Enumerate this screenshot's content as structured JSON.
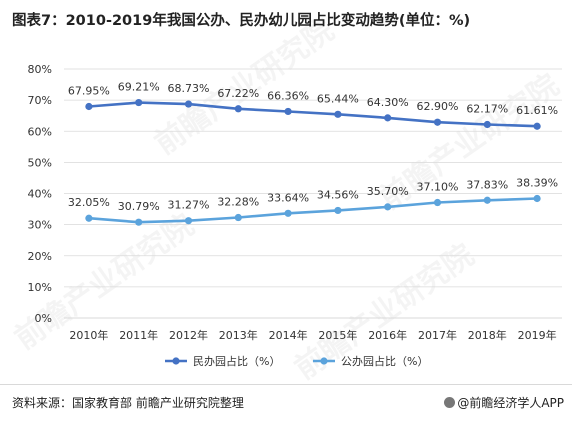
{
  "title": "图表7：2010-2019年我国公办、民办幼儿园占比变动趋势(单位：%)",
  "watermark": "前瞻产业研究院",
  "footer": {
    "source": "资料来源：国家教育部 前瞻产业研究院整理",
    "brand": "@前瞻经济学人APP"
  },
  "colors": {
    "series_private": "#4472c4",
    "series_public": "#5ba3dc",
    "grid": "#d9d9d9"
  },
  "chart_data": {
    "type": "line",
    "title": "图表7：2010-2019年我国公办、民办幼儿园占比变动趋势(单位：%)",
    "xlabel": "",
    "ylabel": "",
    "categories": [
      "2010年",
      "2011年",
      "2012年",
      "2013年",
      "2014年",
      "2015年",
      "2016年",
      "2017年",
      "2018年",
      "2019年"
    ],
    "ylim": [
      0,
      80
    ],
    "yticks": [
      "0%",
      "10%",
      "20%",
      "30%",
      "40%",
      "50%",
      "60%",
      "70%",
      "80%"
    ],
    "grid": true,
    "legend_position": "bottom",
    "series": [
      {
        "name": "民办园占比（%）",
        "values": [
          67.95,
          69.21,
          68.73,
          67.22,
          66.36,
          65.44,
          64.3,
          62.9,
          62.17,
          61.61
        ],
        "labels": [
          "67.95%",
          "69.21%",
          "68.73%",
          "67.22%",
          "66.36%",
          "65.44%",
          "64.30%",
          "62.90%",
          "62.17%",
          "61.61%"
        ]
      },
      {
        "name": "公办园占比（%）",
        "values": [
          32.05,
          30.79,
          31.27,
          32.28,
          33.64,
          34.56,
          35.7,
          37.1,
          37.83,
          38.39
        ],
        "labels": [
          "32.05%",
          "30.79%",
          "31.27%",
          "32.28%",
          "33.64%",
          "34.56%",
          "35.70%",
          "37.10%",
          "37.83%",
          "38.39%"
        ]
      }
    ]
  }
}
